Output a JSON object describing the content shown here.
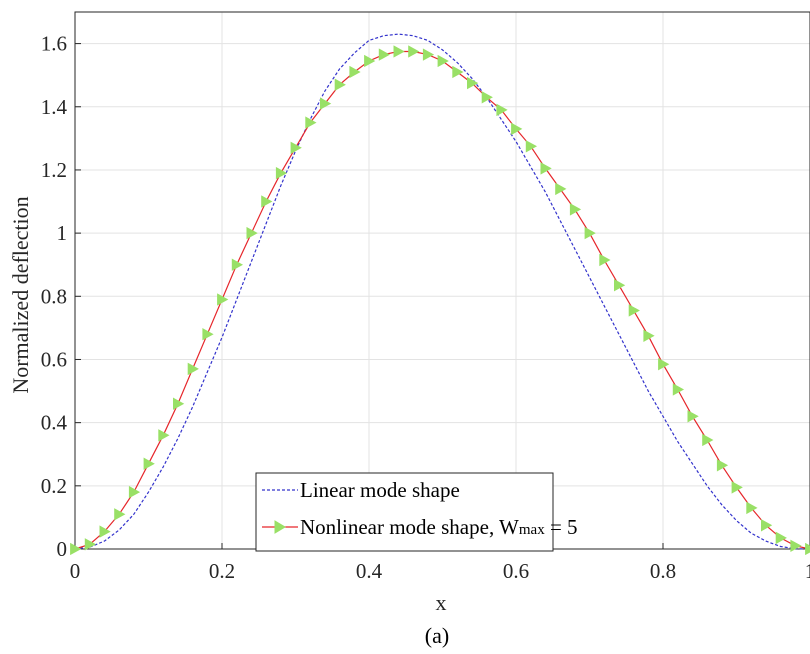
{
  "caption": "(a)",
  "chart_data": {
    "type": "line",
    "xlabel": "x",
    "ylabel": "Normalized deflection",
    "xlim": [
      0,
      1
    ],
    "ylim": [
      0,
      1.7
    ],
    "xticks": [
      0,
      0.2,
      0.4,
      0.6,
      0.8,
      1
    ],
    "xtick_labels": [
      "0",
      "0.2",
      "0.4",
      "0.6",
      "0.8",
      "1"
    ],
    "yticks": [
      0,
      0.2,
      0.4,
      0.6,
      0.8,
      1,
      1.2,
      1.4,
      1.6
    ],
    "ytick_labels": [
      "0",
      "0.2",
      "0.4",
      "0.6",
      "0.8",
      "1",
      "1.2",
      "1.4",
      "1.6"
    ],
    "grid": true,
    "legend_position": "bottom-center",
    "series": [
      {
        "name": "Linear mode shape",
        "color": "#3333cc",
        "style": "dashed",
        "x": [
          0,
          0.02,
          0.04,
          0.06,
          0.08,
          0.1,
          0.12,
          0.14,
          0.16,
          0.18,
          0.2,
          0.22,
          0.24,
          0.26,
          0.28,
          0.3,
          0.32,
          0.34,
          0.36,
          0.38,
          0.4,
          0.42,
          0.44,
          0.46,
          0.48,
          0.5,
          0.52,
          0.54,
          0.56,
          0.58,
          0.6,
          0.62,
          0.64,
          0.66,
          0.68,
          0.7,
          0.72,
          0.74,
          0.76,
          0.78,
          0.8,
          0.82,
          0.84,
          0.86,
          0.88,
          0.9,
          0.92,
          0.94,
          0.96,
          0.98,
          1
        ],
        "y": [
          0,
          0.006,
          0.025,
          0.06,
          0.11,
          0.18,
          0.26,
          0.35,
          0.45,
          0.56,
          0.67,
          0.79,
          0.91,
          1.03,
          1.15,
          1.26,
          1.36,
          1.45,
          1.52,
          1.57,
          1.61,
          1.625,
          1.63,
          1.625,
          1.61,
          1.58,
          1.54,
          1.49,
          1.43,
          1.36,
          1.29,
          1.21,
          1.13,
          1.04,
          0.95,
          0.86,
          0.77,
          0.68,
          0.59,
          0.5,
          0.42,
          0.34,
          0.27,
          0.2,
          0.14,
          0.09,
          0.05,
          0.025,
          0.008,
          0.001,
          0
        ]
      },
      {
        "name": "Nonlinear mode shape, W",
        "name_subscript": "max",
        "name_suffix": " = 5",
        "color": "#e6262b",
        "marker": "triangle-right",
        "marker_color": "#99e066",
        "style": "solid",
        "x": [
          0,
          0.02,
          0.04,
          0.06,
          0.08,
          0.1,
          0.12,
          0.14,
          0.16,
          0.18,
          0.2,
          0.22,
          0.24,
          0.26,
          0.28,
          0.3,
          0.32,
          0.34,
          0.36,
          0.38,
          0.4,
          0.42,
          0.44,
          0.46,
          0.48,
          0.5,
          0.52,
          0.54,
          0.56,
          0.58,
          0.6,
          0.62,
          0.64,
          0.66,
          0.68,
          0.7,
          0.72,
          0.74,
          0.76,
          0.78,
          0.8,
          0.82,
          0.84,
          0.86,
          0.88,
          0.9,
          0.92,
          0.94,
          0.96,
          0.98,
          1
        ],
        "y": [
          0,
          0.015,
          0.055,
          0.11,
          0.18,
          0.27,
          0.36,
          0.46,
          0.57,
          0.68,
          0.79,
          0.9,
          1.0,
          1.1,
          1.19,
          1.27,
          1.35,
          1.41,
          1.47,
          1.51,
          1.545,
          1.565,
          1.575,
          1.575,
          1.565,
          1.545,
          1.51,
          1.475,
          1.43,
          1.39,
          1.33,
          1.275,
          1.205,
          1.14,
          1.075,
          1.0,
          0.915,
          0.835,
          0.755,
          0.675,
          0.585,
          0.505,
          0.42,
          0.345,
          0.265,
          0.195,
          0.13,
          0.075,
          0.035,
          0.01,
          0
        ]
      }
    ]
  }
}
